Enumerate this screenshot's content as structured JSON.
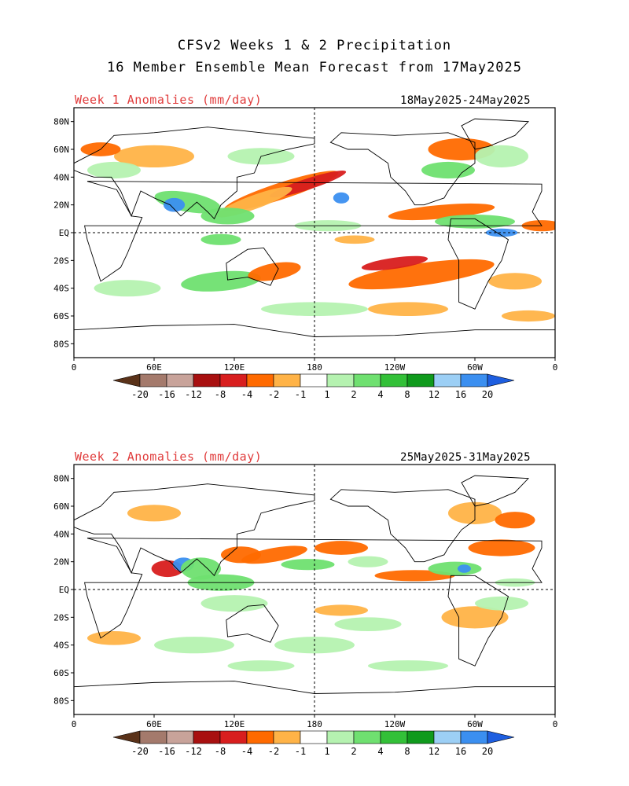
{
  "title": {
    "line1": "CFSv2 Weeks 1 & 2 Precipitation",
    "line2": "16 Member Ensemble Mean Forecast from 17May2025"
  },
  "panels": [
    {
      "label": "Week 1 Anomalies (mm/day)",
      "dates": "18May2025-24May2025"
    },
    {
      "label": "Week 2 Anomalies (mm/day)",
      "dates": "25May2025-31May2025"
    }
  ],
  "axes": {
    "lat_labels": [
      "80N",
      "60N",
      "40N",
      "20N",
      "EQ",
      "20S",
      "40S",
      "60S",
      "80S"
    ],
    "lon_labels": [
      "0",
      "60E",
      "120E",
      "180",
      "120W",
      "60W",
      "0"
    ]
  },
  "colorbar": {
    "labels": [
      "-20",
      "-16",
      "-12",
      "-8",
      "-4",
      "-2",
      "-1",
      "1",
      "2",
      "4",
      "8",
      "12",
      "16",
      "20"
    ],
    "colors": [
      "#5a3219",
      "#a47a6c",
      "#c8a39a",
      "#a81010",
      "#d81e1e",
      "#ff6a00",
      "#ffb347",
      "#ffffff",
      "#b5f2b0",
      "#6fe070",
      "#33c038",
      "#109a1c",
      "#9ccff5",
      "#3b8ff0",
      "#1e5ee0"
    ]
  },
  "colors": {
    "wet_light": "#b5f2b0",
    "wet_mid": "#6fe070",
    "wet_strong": "#33c038",
    "wet_extreme": "#3b8ff0",
    "dry_light": "#ffb347",
    "dry_mid": "#ff6a00",
    "dry_strong": "#d81e1e",
    "dry_extreme": "#a81010",
    "label_red": "#e03b3b"
  }
}
